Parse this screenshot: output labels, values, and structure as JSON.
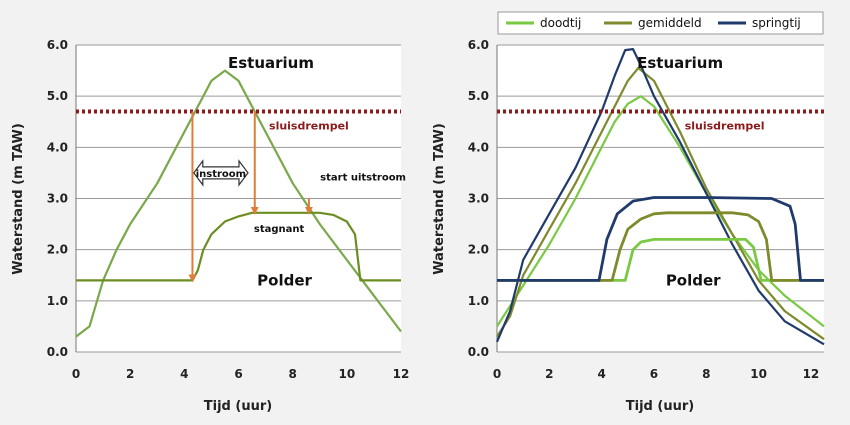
{
  "chart_data": [
    {
      "type": "line",
      "title": "",
      "xlabel": "Tijd (uur)",
      "ylabel": "Waterstand (m TAW)",
      "xlim": [
        0,
        12
      ],
      "ylim": [
        0,
        6
      ],
      "x_ticks": [
        "0",
        "2",
        "4",
        "6",
        "8",
        "10",
        "12"
      ],
      "y_ticks": [
        "0.0",
        "1.0",
        "2.0",
        "3.0",
        "4.0",
        "5.0",
        "6.0"
      ],
      "grid": "horizontal",
      "colors": {
        "estuarium": "#7aa84a",
        "polder": "#6b8e23",
        "sluisdrempel": "#8b1a1a",
        "arrow": "#e07b39"
      },
      "series": [
        {
          "key": "estuarium",
          "points": [
            [
              0,
              0.3
            ],
            [
              0.5,
              0.5
            ],
            [
              1,
              1.4
            ],
            [
              1.5,
              2.0
            ],
            [
              2,
              2.5
            ],
            [
              3,
              3.3
            ],
            [
              4,
              4.3
            ],
            [
              4.5,
              4.8
            ],
            [
              5,
              5.3
            ],
            [
              5.5,
              5.5
            ],
            [
              6,
              5.3
            ],
            [
              6.5,
              4.8
            ],
            [
              7,
              4.3
            ],
            [
              8,
              3.3
            ],
            [
              9,
              2.5
            ],
            [
              10,
              1.8
            ],
            [
              11,
              1.1
            ],
            [
              12,
              0.4
            ]
          ]
        },
        {
          "key": "polder",
          "points": [
            [
              0,
              1.4
            ],
            [
              4.3,
              1.4
            ],
            [
              4.5,
              1.6
            ],
            [
              4.7,
              2.0
            ],
            [
              5,
              2.3
            ],
            [
              5.5,
              2.55
            ],
            [
              6,
              2.65
            ],
            [
              6.5,
              2.72
            ],
            [
              9,
              2.72
            ],
            [
              9.5,
              2.68
            ],
            [
              10,
              2.55
            ],
            [
              10.3,
              2.3
            ],
            [
              10.5,
              1.4
            ],
            [
              12,
              1.4
            ]
          ]
        },
        {
          "key": "sluisdrempel",
          "points": [
            [
              0,
              4.7
            ],
            [
              12,
              4.7
            ]
          ],
          "dotted": true
        }
      ],
      "arrows": [
        {
          "from": [
            4.3,
            4.7
          ],
          "to": [
            4.3,
            1.4
          ]
        },
        {
          "from": [
            6.6,
            4.7
          ],
          "to": [
            6.6,
            2.72
          ]
        },
        {
          "from": [
            8.6,
            3.0
          ],
          "to": [
            8.6,
            2.72
          ]
        }
      ],
      "double_arrow": {
        "x_from": 4.35,
        "x_to": 6.35,
        "y": 3.5
      },
      "annotations": {
        "estuarium": "Estuarium",
        "sluisdrempel": "sluisdrempel",
        "instroom": "instroom",
        "start_uitstroom": "start uitstroom",
        "stagnant": "stagnant",
        "polder": "Polder"
      },
      "annotation_positions": {
        "estuarium": [
          7.2,
          5.55
        ],
        "sluisdrempel": [
          8.6,
          4.35
        ],
        "instroom": [
          5.35,
          3.5
        ],
        "start_uitstroom": [
          10.6,
          3.35
        ],
        "stagnant": [
          7.5,
          2.35
        ],
        "polder": [
          7.7,
          1.3
        ]
      }
    },
    {
      "type": "line",
      "title": "",
      "xlabel": "Tijd (uur)",
      "ylabel": "Waterstand (m TAW)",
      "xlim": [
        0,
        12.5
      ],
      "ylim": [
        0,
        6
      ],
      "x_ticks": [
        "0",
        "2",
        "4",
        "6",
        "8",
        "10",
        "12"
      ],
      "y_ticks": [
        "0.0",
        "1.0",
        "2.0",
        "3.0",
        "4.0",
        "5.0",
        "6.0"
      ],
      "grid": "horizontal",
      "legend": {
        "placement": "top",
        "entries": [
          {
            "label": "doodtij",
            "color": "#7ac943"
          },
          {
            "label": "gemiddeld",
            "color": "#7f8a2c"
          },
          {
            "label": "springtij",
            "color": "#1f3a6b"
          }
        ]
      },
      "colors": {
        "doodtij": "#7ac943",
        "gemiddeld": "#7f8a2c",
        "springtij": "#1f3a6b",
        "sluisdrempel": "#8b1a1a"
      },
      "series": [
        {
          "key": "doodtij_estuarium",
          "legend": "doodtij",
          "points": [
            [
              0,
              0.5
            ],
            [
              0.5,
              0.9
            ],
            [
              1,
              1.3
            ],
            [
              2,
              2.1
            ],
            [
              3,
              3.0
            ],
            [
              4,
              4.0
            ],
            [
              4.5,
              4.5
            ],
            [
              5,
              4.85
            ],
            [
              5.5,
              5.0
            ],
            [
              6,
              4.8
            ],
            [
              7,
              4.0
            ],
            [
              8,
              3.1
            ],
            [
              9,
              2.3
            ],
            [
              10,
              1.6
            ],
            [
              11,
              1.1
            ],
            [
              12.5,
              0.5
            ]
          ]
        },
        {
          "key": "gemiddeld_estuarium",
          "legend": "gemiddeld",
          "points": [
            [
              0,
              0.3
            ],
            [
              0.5,
              0.7
            ],
            [
              1,
              1.5
            ],
            [
              2,
              2.4
            ],
            [
              3,
              3.3
            ],
            [
              4,
              4.3
            ],
            [
              4.5,
              4.8
            ],
            [
              5,
              5.3
            ],
            [
              5.4,
              5.55
            ],
            [
              6,
              5.3
            ],
            [
              6.5,
              4.8
            ],
            [
              7,
              4.3
            ],
            [
              8,
              3.2
            ],
            [
              9,
              2.3
            ],
            [
              10,
              1.4
            ],
            [
              11,
              0.8
            ],
            [
              12.5,
              0.25
            ]
          ]
        },
        {
          "key": "springtij_estuarium",
          "legend": "springtij",
          "points": [
            [
              0,
              0.2
            ],
            [
              0.5,
              0.8
            ],
            [
              1,
              1.8
            ],
            [
              2,
              2.7
            ],
            [
              3,
              3.6
            ],
            [
              4,
              4.7
            ],
            [
              4.5,
              5.4
            ],
            [
              4.9,
              5.9
            ],
            [
              5.2,
              5.92
            ],
            [
              5.5,
              5.6
            ],
            [
              6,
              5.0
            ],
            [
              7,
              4.1
            ],
            [
              8,
              3.1
            ],
            [
              9,
              2.1
            ],
            [
              10,
              1.2
            ],
            [
              11,
              0.6
            ],
            [
              12.5,
              0.15
            ]
          ]
        },
        {
          "key": "doodtij_polder",
          "legend": "doodtij",
          "points": [
            [
              0,
              1.4
            ],
            [
              4.9,
              1.4
            ],
            [
              5.2,
              2.0
            ],
            [
              5.5,
              2.15
            ],
            [
              6,
              2.2
            ],
            [
              9.5,
              2.2
            ],
            [
              9.8,
              2.05
            ],
            [
              10.1,
              1.4
            ],
            [
              12.5,
              1.4
            ]
          ]
        },
        {
          "key": "gemiddeld_polder",
          "legend": "gemiddeld",
          "points": [
            [
              0,
              1.4
            ],
            [
              4.4,
              1.4
            ],
            [
              4.7,
              2.0
            ],
            [
              5,
              2.4
            ],
            [
              5.5,
              2.6
            ],
            [
              6,
              2.7
            ],
            [
              6.5,
              2.72
            ],
            [
              9,
              2.72
            ],
            [
              9.6,
              2.68
            ],
            [
              10,
              2.55
            ],
            [
              10.3,
              2.2
            ],
            [
              10.5,
              1.4
            ],
            [
              12.5,
              1.4
            ]
          ]
        },
        {
          "key": "springtij_polder",
          "legend": "springtij",
          "points": [
            [
              0,
              1.4
            ],
            [
              3.9,
              1.4
            ],
            [
              4.2,
              2.2
            ],
            [
              4.6,
              2.7
            ],
            [
              5.2,
              2.95
            ],
            [
              6,
              3.02
            ],
            [
              8,
              3.02
            ],
            [
              10.5,
              3.0
            ],
            [
              11.2,
              2.85
            ],
            [
              11.4,
              2.5
            ],
            [
              11.6,
              1.4
            ],
            [
              12.5,
              1.4
            ]
          ]
        },
        {
          "key": "sluisdrempel",
          "points": [
            [
              0,
              4.7
            ],
            [
              12.5,
              4.7
            ]
          ],
          "dotted": true
        }
      ],
      "annotations": {
        "estuarium": "Estuarium",
        "sluisdrempel": "sluisdrempel",
        "polder": "Polder"
      },
      "annotation_positions": {
        "estuarium": [
          7.0,
          5.55
        ],
        "sluisdrempel": [
          8.7,
          4.35
        ],
        "polder": [
          7.5,
          1.3
        ]
      }
    }
  ]
}
